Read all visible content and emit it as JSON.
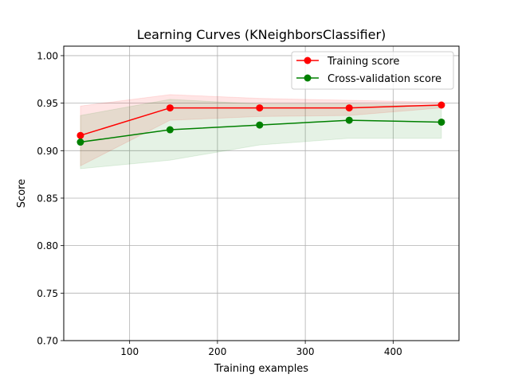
{
  "chart_data": {
    "type": "line",
    "title": "Learning Curves (KNeighborsClassifier)",
    "xlabel": "Training examples",
    "ylabel": "Score",
    "xlim": [
      25,
      475
    ],
    "ylim": [
      0.7,
      1.01
    ],
    "xticks": [
      100,
      200,
      300,
      400
    ],
    "xtick_labels": [
      "100",
      "200",
      "300",
      "400"
    ],
    "yticks": [
      0.7,
      0.75,
      0.8,
      0.85,
      0.9,
      0.95,
      1.0
    ],
    "ytick_labels": [
      "0.70",
      "0.75",
      "0.80",
      "0.85",
      "0.90",
      "0.95",
      "1.00"
    ],
    "grid": true,
    "legend_position": "top-right",
    "x": [
      44,
      146,
      248,
      350,
      455
    ],
    "series": [
      {
        "name": "Training score",
        "color": "#ff0000",
        "marker": "circle",
        "values": [
          0.916,
          0.945,
          0.945,
          0.945,
          0.948
        ],
        "band_lower": [
          0.884,
          0.932,
          0.936,
          0.937,
          0.945
        ],
        "band_upper": [
          0.947,
          0.959,
          0.955,
          0.953,
          0.951
        ]
      },
      {
        "name": "Cross-validation score",
        "color": "#008000",
        "marker": "circle",
        "values": [
          0.909,
          0.922,
          0.927,
          0.932,
          0.93
        ],
        "band_lower": [
          0.881,
          0.89,
          0.906,
          0.913,
          0.913
        ],
        "band_upper": [
          0.937,
          0.954,
          0.949,
          0.949,
          0.947
        ]
      }
    ]
  }
}
